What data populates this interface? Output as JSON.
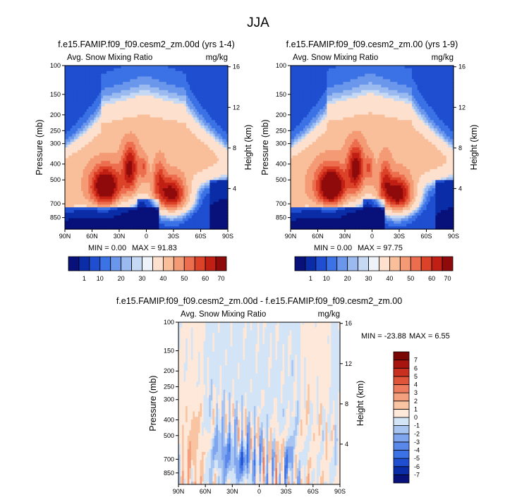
{
  "figure": {
    "season": "JJA",
    "variable_label": "Avg. Snow Mixing Ratio",
    "units": "mg/kg",
    "pressure_axis_label": "Pressure (mb)",
    "height_axis_label": "Height (km)"
  },
  "panels": [
    {
      "id": "case",
      "title": "f.e15.FAMIP.f09_f09.cesm2_zm.00d (yrs 1-4)",
      "min_label": "MIN =  0.00",
      "max_label": "MAX =  91.83"
    },
    {
      "id": "control",
      "title": "f.e15.FAMIP.f09_f09.cesm2_zm.00 (yrs 1-9)",
      "min_label": "MIN =  0.00",
      "max_label": "MAX =  97.75"
    },
    {
      "id": "difference",
      "title": "f.e15.FAMIP.f09_f09.cesm2_zm.00d - f.e15.FAMIP.f09_f09.cesm2_zm.00",
      "min_label": "MIN = -23.88",
      "max_label": "MAX =  6.55"
    }
  ],
  "chart_data": {
    "type": "heatmap",
    "x_ticks": [
      "90N",
      "60N",
      "30N",
      "0",
      "30S",
      "60S",
      "90S"
    ],
    "x_values": [
      90,
      60,
      30,
      0,
      -30,
      -60,
      -90
    ],
    "pressure_ticks": [
      100,
      150,
      200,
      250,
      300,
      400,
      500,
      700,
      850
    ],
    "pressure_range_mb": [
      100,
      1000
    ],
    "pressure_scale": "log",
    "height_ticks": [
      4,
      8,
      12,
      16
    ],
    "height_units": "km",
    "abs_colorbar": {
      "levels": [
        1,
        10,
        20,
        30,
        40,
        50,
        60,
        70
      ],
      "colors": [
        "#08107a",
        "#0a2ca6",
        "#1f4fd0",
        "#3b72e6",
        "#6a97ec",
        "#9bbbf0",
        "#c5d9f5",
        "#eef3f9",
        "#fde0cd",
        "#f9bf9b",
        "#f49a74",
        "#ec6e4e",
        "#dc4228",
        "#c11f14",
        "#8f0a0a"
      ]
    },
    "diff_colorbar": {
      "levels": [
        -7,
        -6,
        -5,
        -4,
        -3,
        -2,
        -1,
        0,
        1,
        2,
        3,
        4,
        5,
        6,
        7
      ],
      "colors": [
        "#08107a",
        "#0a2ca6",
        "#1f4fd0",
        "#3b72e6",
        "#5a88ea",
        "#7ea5ee",
        "#a8c5f2",
        "#d3e4f7",
        "#fde8d9",
        "#f9c4a2",
        "#f4a07e",
        "#ee7b5d",
        "#e0553a",
        "#c93020",
        "#a8140f",
        "#7a0606"
      ]
    }
  }
}
